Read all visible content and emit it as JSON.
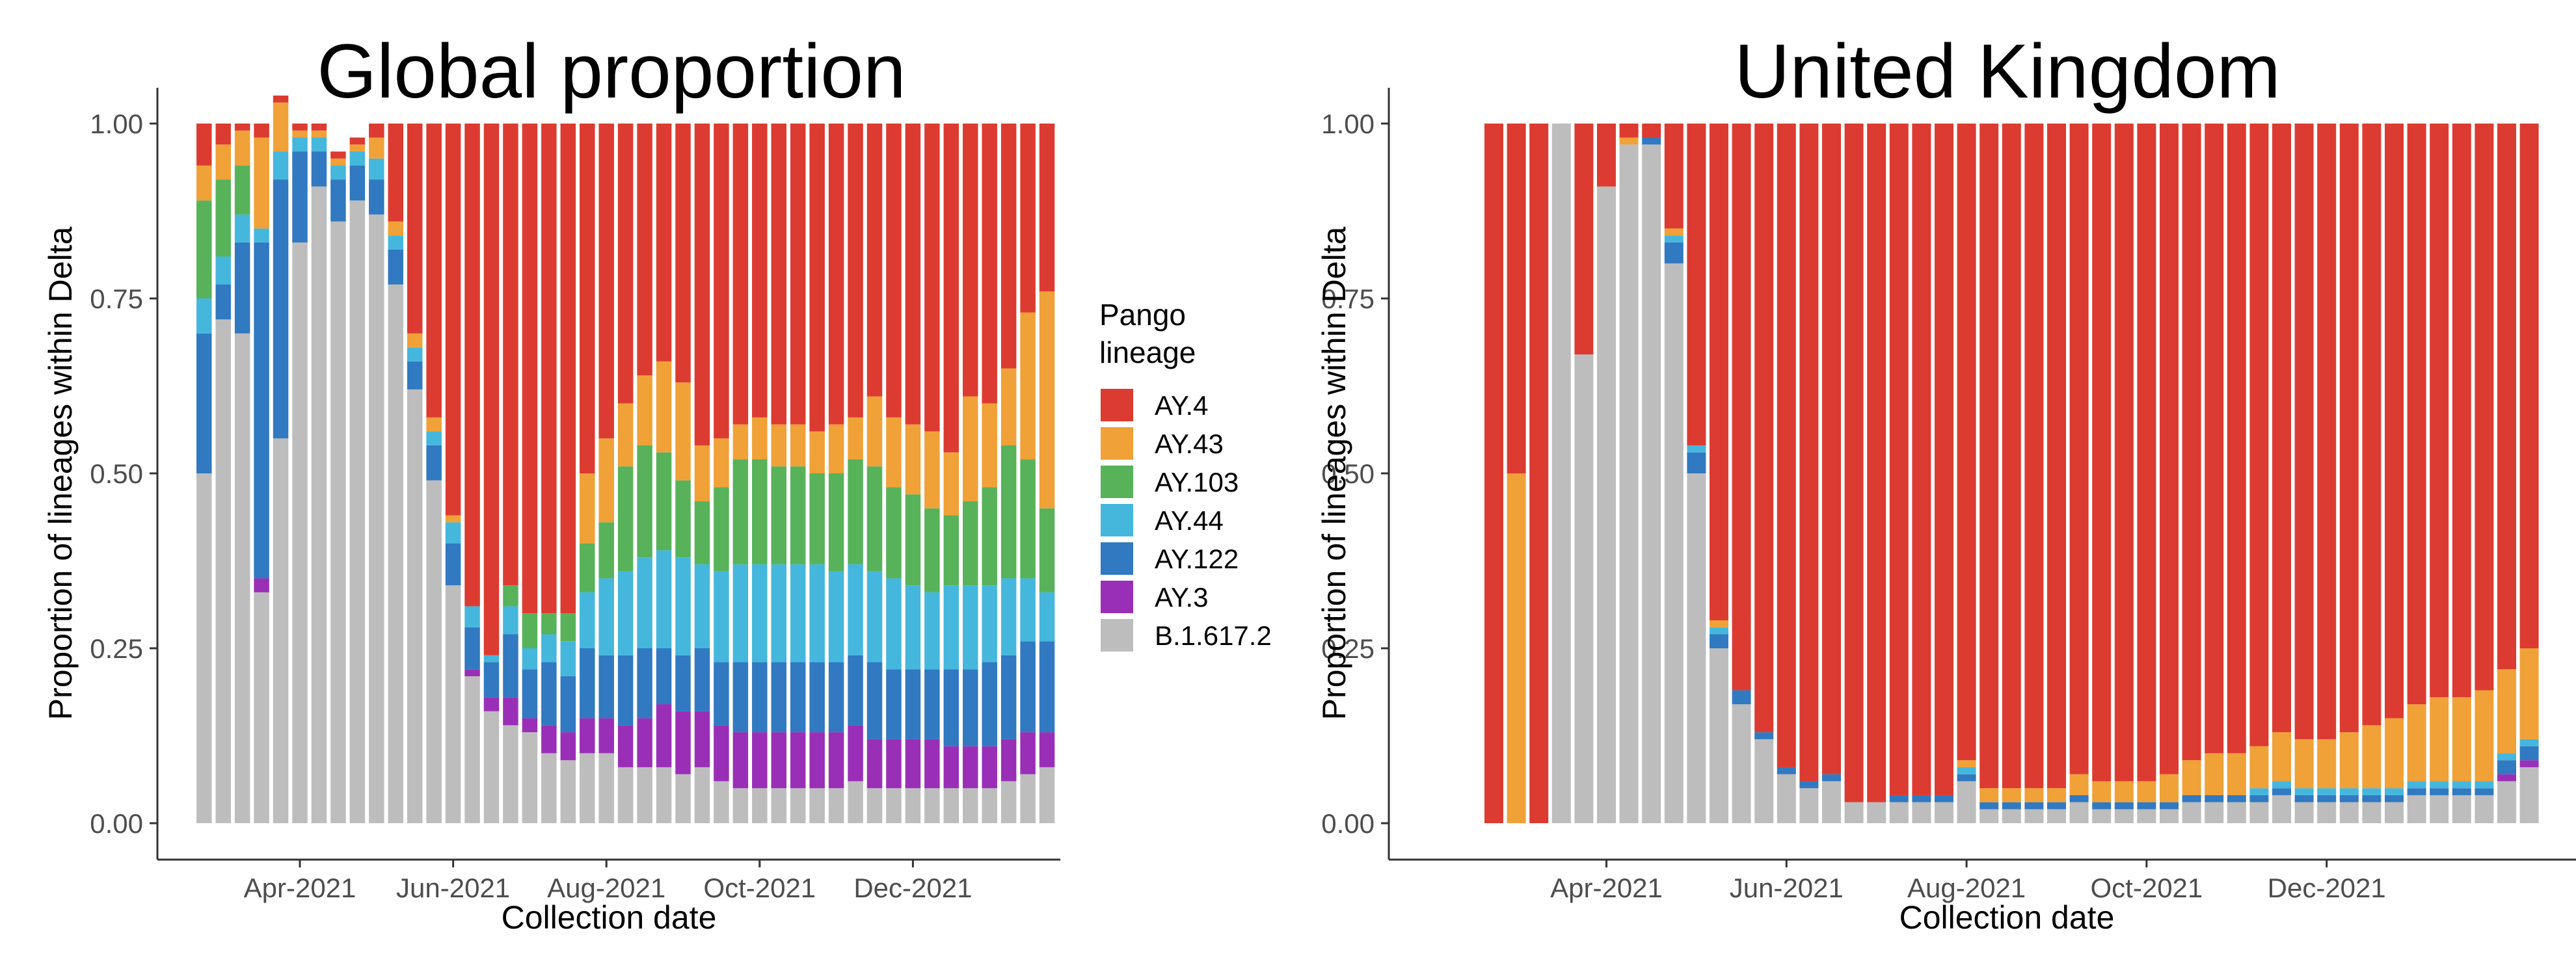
{
  "colors": {
    "AY.4": "#DC3B31",
    "AY.43": "#F0A137",
    "AY.103": "#57B25A",
    "AY.44": "#45B7DD",
    "AY.122": "#3179C0",
    "AY.3": "#9A2FB7",
    "B.1.617.2": "#BDBDBD"
  },
  "legend": {
    "title_line1": "Pango",
    "title_line2": "lineage",
    "items": [
      "AY.4",
      "AY.43",
      "AY.103",
      "AY.44",
      "AY.122",
      "AY.3",
      "B.1.617.2"
    ]
  },
  "chart_data": [
    {
      "type": "bar",
      "stacked": true,
      "title": "Global proportion",
      "xlabel": "Collection date",
      "ylabel": "Proportion of lineages within Delta",
      "ylim": [
        0,
        1
      ],
      "yticks": [
        "0.00",
        "0.25",
        "0.50",
        "0.75",
        "1.00"
      ],
      "xticks": [
        "Apr-2021",
        "Jun-2021",
        "Aug-2021",
        "Oct-2021",
        "Dec-2021"
      ],
      "x_tick_bar_index": [
        5,
        13,
        21,
        29,
        37
      ],
      "bars_per_week": "weekly",
      "series_order": [
        "B.1.617.2",
        "AY.3",
        "AY.122",
        "AY.44",
        "AY.103",
        "AY.43",
        "AY.4"
      ],
      "series": [
        {
          "name": "B.1.617.2",
          "values": [
            0.5,
            0.72,
            0.7,
            0.33,
            0.55,
            0.83,
            0.91,
            0.86,
            0.89,
            0.87,
            0.77,
            0.62,
            0.49,
            0.34,
            0.21,
            0.16,
            0.14,
            0.13,
            0.1,
            0.09,
            0.1,
            0.1,
            0.08,
            0.08,
            0.08,
            0.07,
            0.08,
            0.06,
            0.05,
            0.05,
            0.05,
            0.05,
            0.05,
            0.05,
            0.06,
            0.05,
            0.05,
            0.05,
            0.05,
            0.05,
            0.05,
            0.05,
            0.06,
            0.07,
            0.08
          ]
        },
        {
          "name": "AY.3",
          "values": [
            0,
            0,
            0,
            0.02,
            0,
            0,
            0,
            0,
            0,
            0,
            0,
            0,
            0,
            0,
            0.01,
            0.02,
            0.04,
            0.02,
            0.04,
            0.04,
            0.05,
            0.05,
            0.06,
            0.07,
            0.09,
            0.09,
            0.08,
            0.08,
            0.08,
            0.08,
            0.08,
            0.08,
            0.08,
            0.08,
            0.08,
            0.07,
            0.07,
            0.07,
            0.07,
            0.06,
            0.06,
            0.06,
            0.06,
            0.06,
            0.05
          ]
        },
        {
          "name": "AY.122",
          "values": [
            0.2,
            0.05,
            0.13,
            0.48,
            0.37,
            0.13,
            0.05,
            0.06,
            0.05,
            0.05,
            0.05,
            0.04,
            0.05,
            0.06,
            0.06,
            0.05,
            0.09,
            0.07,
            0.09,
            0.08,
            0.1,
            0.09,
            0.1,
            0.1,
            0.08,
            0.08,
            0.09,
            0.09,
            0.1,
            0.1,
            0.1,
            0.1,
            0.1,
            0.1,
            0.1,
            0.11,
            0.1,
            0.1,
            0.1,
            0.11,
            0.11,
            0.12,
            0.12,
            0.13,
            0.13
          ]
        },
        {
          "name": "AY.44",
          "values": [
            0.05,
            0.04,
            0.04,
            0.02,
            0.04,
            0.02,
            0.02,
            0.02,
            0.02,
            0.03,
            0.02,
            0.02,
            0.02,
            0.03,
            0.03,
            0.01,
            0.04,
            0.03,
            0.04,
            0.05,
            0.08,
            0.11,
            0.12,
            0.13,
            0.14,
            0.14,
            0.12,
            0.13,
            0.14,
            0.14,
            0.14,
            0.14,
            0.14,
            0.13,
            0.13,
            0.13,
            0.13,
            0.12,
            0.11,
            0.12,
            0.12,
            0.11,
            0.11,
            0.09,
            0.07
          ]
        },
        {
          "name": "AY.103",
          "values": [
            0.14,
            0.11,
            0.07,
            0,
            0,
            0,
            0,
            0,
            0,
            0,
            0,
            0,
            0,
            0,
            0,
            0,
            0.03,
            0.05,
            0.03,
            0.04,
            0.07,
            0.08,
            0.15,
            0.16,
            0.14,
            0.11,
            0.09,
            0.12,
            0.15,
            0.15,
            0.14,
            0.14,
            0.13,
            0.14,
            0.15,
            0.15,
            0.13,
            0.13,
            0.12,
            0.1,
            0.12,
            0.14,
            0.19,
            0.17,
            0.12
          ]
        },
        {
          "name": "AY.43",
          "values": [
            0.05,
            0.05,
            0.05,
            0.13,
            0.07,
            0.01,
            0.01,
            0.01,
            0.01,
            0.03,
            0.02,
            0.02,
            0.02,
            0.01,
            0,
            0,
            0,
            0,
            0,
            0,
            0.1,
            0.12,
            0.09,
            0.1,
            0.13,
            0.14,
            0.08,
            0.07,
            0.05,
            0.06,
            0.06,
            0.06,
            0.06,
            0.07,
            0.06,
            0.1,
            0.1,
            0.1,
            0.11,
            0.09,
            0.15,
            0.12,
            0.11,
            0.21,
            0.31
          ]
        },
        {
          "name": "AY.4",
          "values": [
            0.06,
            0.03,
            0.01,
            0.02,
            0.01,
            0.01,
            0.01,
            0.01,
            0.01,
            0.02,
            0.14,
            0.3,
            0.42,
            0.56,
            0.69,
            0.76,
            0.66,
            0.7,
            0.7,
            0.7,
            0.5,
            0.45,
            0.4,
            0.36,
            0.34,
            0.37,
            0.46,
            0.45,
            0.43,
            0.42,
            0.43,
            0.43,
            0.44,
            0.43,
            0.42,
            0.39,
            0.42,
            0.43,
            0.44,
            0.47,
            0.39,
            0.4,
            0.35,
            0.27,
            0.24
          ]
        }
      ]
    },
    {
      "type": "bar",
      "stacked": true,
      "title": "United Kingdom",
      "xlabel": "Collection date",
      "ylabel": "Proportion of lineages within Delta",
      "ylim": [
        0,
        1
      ],
      "yticks": [
        "0.00",
        "0.25",
        "0.50",
        "0.75",
        "1.00"
      ],
      "xticks": [
        "Apr-2021",
        "Jun-2021",
        "Aug-2021",
        "Oct-2021",
        "Dec-2021"
      ],
      "x_tick_bar_index": [
        5,
        13,
        21,
        29,
        37
      ],
      "series_order": [
        "B.1.617.2",
        "AY.3",
        "AY.122",
        "AY.44",
        "AY.103",
        "AY.43",
        "AY.4"
      ],
      "series": [
        {
          "name": "B.1.617.2",
          "values": [
            0,
            0,
            0,
            1.0,
            0.67,
            0.91,
            0.97,
            0.97,
            0.8,
            0.5,
            0.25,
            0.17,
            0.12,
            0.07,
            0.05,
            0.06,
            0.03,
            0.03,
            0.03,
            0.03,
            0.03,
            0.06,
            0.02,
            0.02,
            0.02,
            0.02,
            0.03,
            0.02,
            0.02,
            0.02,
            0.02,
            0.03,
            0.03,
            0.03,
            0.03,
            0.04,
            0.03,
            0.03,
            0.03,
            0.03,
            0.03,
            0.04,
            0.04,
            0.04,
            0.04,
            0.06,
            0.08
          ]
        },
        {
          "name": "AY.3",
          "values": [
            0,
            0,
            0,
            0,
            0,
            0,
            0,
            0,
            0,
            0,
            0,
            0,
            0,
            0,
            0,
            0,
            0,
            0,
            0,
            0,
            0,
            0,
            0,
            0,
            0,
            0,
            0,
            0,
            0,
            0,
            0,
            0,
            0,
            0,
            0,
            0,
            0,
            0,
            0,
            0,
            0,
            0,
            0,
            0,
            0,
            0.01,
            0.01
          ]
        },
        {
          "name": "AY.122",
          "values": [
            0,
            0,
            0,
            0,
            0,
            0,
            0,
            0.01,
            0.03,
            0.03,
            0.02,
            0.02,
            0.01,
            0.01,
            0.01,
            0.01,
            0,
            0,
            0.01,
            0.01,
            0.01,
            0.01,
            0.01,
            0.01,
            0.01,
            0.01,
            0.01,
            0.01,
            0.01,
            0.01,
            0.01,
            0.01,
            0.01,
            0.01,
            0.01,
            0.01,
            0.01,
            0.01,
            0.01,
            0.01,
            0.01,
            0.01,
            0.01,
            0.01,
            0.01,
            0.02,
            0.02
          ]
        },
        {
          "name": "AY.44",
          "values": [
            0,
            0,
            0,
            0,
            0,
            0,
            0,
            0,
            0.01,
            0.01,
            0.01,
            0,
            0,
            0,
            0,
            0,
            0,
            0,
            0,
            0,
            0,
            0.01,
            0,
            0,
            0,
            0,
            0,
            0,
            0,
            0,
            0,
            0,
            0,
            0,
            0.01,
            0.01,
            0.01,
            0.01,
            0.01,
            0.01,
            0.01,
            0.01,
            0.01,
            0.01,
            0.01,
            0.01,
            0.01
          ]
        },
        {
          "name": "AY.103",
          "values": [
            0,
            0,
            0,
            0,
            0,
            0,
            0,
            0,
            0,
            0,
            0,
            0,
            0,
            0,
            0,
            0,
            0,
            0,
            0,
            0,
            0,
            0,
            0,
            0,
            0,
            0,
            0,
            0,
            0,
            0,
            0,
            0,
            0,
            0,
            0,
            0,
            0,
            0,
            0,
            0,
            0,
            0,
            0,
            0,
            0,
            0,
            0
          ]
        },
        {
          "name": "AY.43",
          "values": [
            0,
            0.5,
            0,
            0,
            0,
            0,
            0.01,
            0,
            0.01,
            0,
            0.01,
            0,
            0,
            0,
            0,
            0,
            0,
            0,
            0,
            0,
            0,
            0.01,
            0.02,
            0.02,
            0.02,
            0.02,
            0.03,
            0.03,
            0.03,
            0.03,
            0.04,
            0.05,
            0.06,
            0.06,
            0.06,
            0.07,
            0.07,
            0.07,
            0.08,
            0.09,
            0.1,
            0.11,
            0.12,
            0.12,
            0.13,
            0.12,
            0.13
          ]
        },
        {
          "name": "AY.4",
          "values": [
            1.0,
            0.5,
            1.0,
            0,
            0.33,
            0.09,
            0.02,
            0.02,
            0.15,
            0.46,
            0.71,
            0.81,
            0.87,
            0.92,
            0.94,
            0.93,
            0.97,
            0.97,
            0.96,
            0.96,
            0.96,
            0.91,
            0.95,
            0.95,
            0.95,
            0.95,
            0.93,
            0.94,
            0.94,
            0.94,
            0.93,
            0.91,
            0.9,
            0.9,
            0.89,
            0.87,
            0.88,
            0.88,
            0.87,
            0.86,
            0.85,
            0.83,
            0.82,
            0.82,
            0.81,
            0.78,
            0.75
          ]
        }
      ]
    }
  ]
}
